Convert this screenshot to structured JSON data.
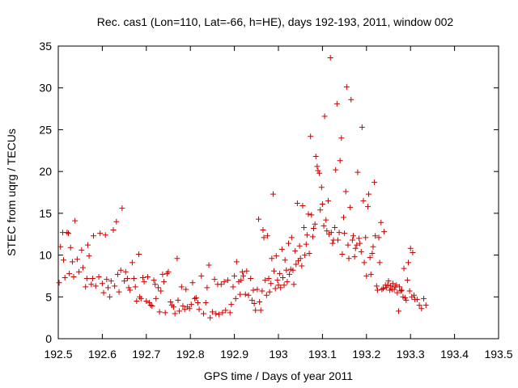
{
  "chart_data": {
    "type": "scatter",
    "title": "Rec. cas1 (Lon=110, Lat=-66, h=HE), days 192-193, 2011, window 002",
    "xlabel": "GPS time / Days of year 2011",
    "ylabel": "STEC from uqrg / TECUs",
    "xlim": [
      192.5,
      193.5
    ],
    "ylim": [
      0,
      35
    ],
    "xticks": [
      192.5,
      192.6,
      192.7,
      192.8,
      192.9,
      193,
      193.1,
      193.2,
      193.3,
      193.4,
      193.5
    ],
    "xtick_labels": [
      "192.5",
      "192.6",
      "192.7",
      "192.8",
      "192.9",
      "193",
      "193.1",
      "193.2",
      "193.3",
      "193.4",
      "193.5"
    ],
    "yticks": [
      0,
      5,
      10,
      15,
      20,
      25,
      30,
      35
    ],
    "ytick_labels": [
      "0",
      "5",
      "10",
      "15",
      "20",
      "25",
      "30",
      "35"
    ],
    "grid": false,
    "legend": "none",
    "marker": "+",
    "color": "#cc0000",
    "points": [
      [
        192.502,
        6.7
      ],
      [
        192.505,
        11.0
      ],
      [
        192.51,
        12.7
      ],
      [
        192.512,
        9.4
      ],
      [
        192.515,
        7.3
      ],
      [
        192.52,
        12.7
      ],
      [
        192.523,
        12.6
      ],
      [
        192.525,
        7.8
      ],
      [
        192.528,
        10.9
      ],
      [
        192.532,
        9.2
      ],
      [
        192.535,
        7.4
      ],
      [
        192.538,
        14.1
      ],
      [
        192.543,
        9.5
      ],
      [
        192.547,
        8.0
      ],
      [
        192.553,
        10.6
      ],
      [
        192.556,
        8.5
      ],
      [
        192.562,
        6.2
      ],
      [
        192.565,
        7.2
      ],
      [
        192.567,
        11.2
      ],
      [
        192.57,
        9.9
      ],
      [
        192.575,
        6.5
      ],
      [
        192.578,
        7.2
      ],
      [
        192.58,
        12.3
      ],
      [
        192.585,
        6.3
      ],
      [
        192.592,
        7.4
      ],
      [
        192.595,
        12.6
      ],
      [
        192.6,
        6.6
      ],
      [
        192.603,
        5.5
      ],
      [
        192.607,
        12.4
      ],
      [
        192.61,
        7.1
      ],
      [
        192.613,
        6.1
      ],
      [
        192.617,
        5.0
      ],
      [
        192.62,
        6.9
      ],
      [
        192.625,
        13.0
      ],
      [
        192.628,
        6.3
      ],
      [
        192.632,
        14.0
      ],
      [
        192.635,
        7.7
      ],
      [
        192.638,
        5.6
      ],
      [
        192.642,
        8.2
      ],
      [
        192.645,
        15.6
      ],
      [
        192.65,
        6.9
      ],
      [
        192.653,
        8.0
      ],
      [
        192.657,
        7.2
      ],
      [
        192.66,
        6.1
      ],
      [
        192.663,
        5.8
      ],
      [
        192.668,
        9.1
      ],
      [
        192.672,
        7.2
      ],
      [
        192.675,
        6.2
      ],
      [
        192.678,
        4.5
      ],
      [
        192.683,
        10.1
      ],
      [
        192.685,
        5.0
      ],
      [
        192.688,
        4.8
      ],
      [
        192.692,
        7.3
      ],
      [
        192.695,
        6.8
      ],
      [
        192.7,
        4.5
      ],
      [
        192.703,
        7.4
      ],
      [
        192.707,
        4.3
      ],
      [
        192.71,
        4.0
      ],
      [
        192.713,
        3.9
      ],
      [
        192.717,
        7.0
      ],
      [
        192.72,
        6.5
      ],
      [
        192.722,
        4.8
      ],
      [
        192.727,
        6.1
      ],
      [
        192.73,
        3.2
      ],
      [
        192.733,
        5.7
      ],
      [
        192.737,
        7.7
      ],
      [
        192.74,
        6.8
      ],
      [
        192.743,
        3.1
      ],
      [
        192.747,
        7.8
      ],
      [
        192.75,
        8.0
      ],
      [
        192.755,
        4.4
      ],
      [
        192.758,
        4.0
      ],
      [
        192.762,
        3.8
      ],
      [
        192.765,
        3.0
      ],
      [
        192.77,
        9.6
      ],
      [
        192.772,
        4.6
      ],
      [
        192.775,
        3.3
      ],
      [
        192.78,
        6.2
      ],
      [
        192.783,
        3.9
      ],
      [
        192.787,
        3.5
      ],
      [
        192.79,
        5.9
      ],
      [
        192.793,
        3.8
      ],
      [
        192.798,
        3.6
      ],
      [
        192.802,
        4.1
      ],
      [
        192.805,
        6.7
      ],
      [
        192.81,
        4.8
      ],
      [
        192.813,
        4.9
      ],
      [
        192.817,
        4.3
      ],
      [
        192.82,
        3.5
      ],
      [
        192.825,
        7.5
      ],
      [
        192.83,
        3.0
      ],
      [
        192.835,
        4.3
      ],
      [
        192.838,
        6.1
      ],
      [
        192.842,
        8.8
      ],
      [
        192.845,
        2.5
      ],
      [
        192.85,
        3.2
      ],
      [
        192.855,
        7.1
      ],
      [
        192.858,
        3.0
      ],
      [
        192.862,
        6.5
      ],
      [
        192.865,
        2.9
      ],
      [
        192.87,
        6.5
      ],
      [
        192.873,
        3.1
      ],
      [
        192.877,
        6.8
      ],
      [
        192.88,
        3.4
      ],
      [
        192.885,
        7.0
      ],
      [
        192.89,
        3.1
      ],
      [
        192.893,
        4.1
      ],
      [
        192.897,
        6.2
      ],
      [
        192.9,
        7.5
      ],
      [
        192.903,
        4.8
      ],
      [
        192.905,
        9.2
      ],
      [
        192.91,
        6.8
      ],
      [
        192.913,
        5.3
      ],
      [
        192.915,
        7.0
      ],
      [
        192.918,
        8.0
      ],
      [
        192.92,
        7.5
      ],
      [
        192.925,
        5.3
      ],
      [
        192.928,
        8.1
      ],
      [
        192.932,
        5.2
      ],
      [
        192.937,
        7.2
      ],
      [
        192.94,
        4.6
      ],
      [
        192.943,
        5.8
      ],
      [
        192.945,
        4.2
      ],
      [
        192.948,
        3.4
      ],
      [
        192.952,
        5.9
      ],
      [
        192.955,
        14.3
      ],
      [
        192.957,
        4.4
      ],
      [
        192.96,
        3.4
      ],
      [
        192.963,
        5.7
      ],
      [
        192.965,
        13.0
      ],
      [
        192.967,
        12.1
      ],
      [
        192.97,
        7.0
      ],
      [
        192.973,
        5.2
      ],
      [
        192.975,
        12.3
      ],
      [
        192.978,
        7.2
      ],
      [
        192.98,
        5.6
      ],
      [
        192.983,
        6.6
      ],
      [
        192.985,
        9.6
      ],
      [
        192.988,
        17.3
      ],
      [
        192.99,
        8.1
      ],
      [
        192.993,
        6.0
      ],
      [
        192.995,
        9.9
      ],
      [
        192.998,
        7.0
      ],
      [
        193.0,
        6.4
      ],
      [
        193.003,
        7.8
      ],
      [
        193.005,
        6.1
      ],
      [
        193.008,
        10.7
      ],
      [
        193.01,
        7.3
      ],
      [
        193.013,
        6.4
      ],
      [
        193.015,
        9.4
      ],
      [
        193.018,
        8.2
      ],
      [
        193.02,
        6.8
      ],
      [
        193.023,
        11.4
      ],
      [
        193.025,
        7.7
      ],
      [
        193.028,
        8.3
      ],
      [
        193.03,
        12.1
      ],
      [
        193.033,
        8.2
      ],
      [
        193.035,
        6.5
      ],
      [
        193.038,
        10.5
      ],
      [
        193.04,
        8.9
      ],
      [
        193.043,
        16.2
      ],
      [
        193.045,
        9.3
      ],
      [
        193.048,
        11.1
      ],
      [
        193.05,
        9.6
      ],
      [
        193.053,
        8.7
      ],
      [
        193.055,
        15.9
      ],
      [
        193.058,
        13.3
      ],
      [
        193.06,
        10.0
      ],
      [
        193.063,
        11.3
      ],
      [
        193.065,
        12.4
      ],
      [
        193.068,
        14.9
      ],
      [
        193.07,
        10.2
      ],
      [
        193.073,
        24.2
      ],
      [
        193.075,
        14.8
      ],
      [
        193.078,
        12.2
      ],
      [
        193.08,
        13.2
      ],
      [
        193.083,
        13.7
      ],
      [
        193.085,
        21.8
      ],
      [
        193.088,
        20.6
      ],
      [
        193.09,
        20.1
      ],
      [
        193.093,
        19.8
      ],
      [
        193.095,
        15.4
      ],
      [
        193.098,
        18.1
      ],
      [
        193.1,
        16.1
      ],
      [
        193.103,
        13.5
      ],
      [
        193.105,
        26.6
      ],
      [
        193.108,
        14.2
      ],
      [
        193.11,
        12.9
      ],
      [
        193.113,
        16.5
      ],
      [
        193.115,
        12.5
      ],
      [
        193.118,
        33.6
      ],
      [
        193.12,
        12.7
      ],
      [
        193.123,
        11.4
      ],
      [
        193.125,
        11.8
      ],
      [
        193.128,
        13.3
      ],
      [
        193.13,
        20.2
      ],
      [
        193.133,
        28.1
      ],
      [
        193.135,
        11.8
      ],
      [
        193.138,
        12.7
      ],
      [
        193.14,
        21.3
      ],
      [
        193.143,
        24.0
      ],
      [
        193.145,
        10.1
      ],
      [
        193.148,
        14.5
      ],
      [
        193.15,
        12.6
      ],
      [
        193.153,
        17.6
      ],
      [
        193.155,
        30.1
      ],
      [
        193.158,
        11.2
      ],
      [
        193.16,
        9.6
      ],
      [
        193.163,
        15.7
      ],
      [
        193.165,
        28.6
      ],
      [
        193.168,
        11.8
      ],
      [
        193.17,
        12.3
      ],
      [
        193.173,
        9.8
      ],
      [
        193.175,
        10.8
      ],
      [
        193.178,
        11.2
      ],
      [
        193.18,
        19.9
      ],
      [
        193.183,
        12.0
      ],
      [
        193.185,
        11.4
      ],
      [
        193.188,
        10.4
      ],
      [
        193.19,
        25.3
      ],
      [
        193.193,
        16.5
      ],
      [
        193.195,
        9.1
      ],
      [
        193.198,
        12.1
      ],
      [
        193.2,
        7.5
      ],
      [
        193.203,
        15.8
      ],
      [
        193.205,
        17.3
      ],
      [
        193.208,
        9.7
      ],
      [
        193.21,
        7.7
      ],
      [
        193.213,
        10.2
      ],
      [
        193.215,
        11.0
      ],
      [
        193.218,
        18.7
      ],
      [
        193.22,
        12.3
      ],
      [
        193.223,
        6.3
      ],
      [
        193.225,
        5.8
      ],
      [
        193.228,
        12.1
      ],
      [
        193.23,
        9.1
      ],
      [
        193.233,
        13.9
      ],
      [
        193.235,
        5.9
      ],
      [
        193.238,
        6.0
      ],
      [
        193.24,
        12.8
      ],
      [
        193.243,
        6.4
      ],
      [
        193.245,
        6.1
      ],
      [
        193.248,
        6.4
      ],
      [
        193.25,
        6.9
      ],
      [
        193.253,
        5.8
      ],
      [
        193.255,
        6.3
      ],
      [
        193.258,
        5.9
      ],
      [
        193.26,
        6.6
      ],
      [
        193.263,
        5.9
      ],
      [
        193.265,
        6.2
      ],
      [
        193.268,
        6.4
      ],
      [
        193.27,
        5.5
      ],
      [
        193.273,
        3.3
      ],
      [
        193.275,
        6.2
      ],
      [
        193.278,
        5.7
      ],
      [
        193.28,
        5.8
      ],
      [
        193.283,
        5.0
      ],
      [
        193.285,
        8.4
      ],
      [
        193.288,
        4.9
      ],
      [
        193.29,
        4.6
      ],
      [
        193.293,
        7.0
      ],
      [
        193.295,
        9.1
      ],
      [
        193.298,
        5.7
      ],
      [
        193.3,
        10.8
      ],
      [
        193.303,
        5.0
      ],
      [
        193.305,
        10.3
      ],
      [
        193.308,
        5.2
      ],
      [
        193.31,
        4.7
      ],
      [
        193.315,
        4.7
      ],
      [
        193.32,
        4.0
      ],
      [
        193.325,
        3.6
      ],
      [
        193.33,
        4.8
      ],
      [
        193.335,
        4.0
      ]
    ]
  }
}
